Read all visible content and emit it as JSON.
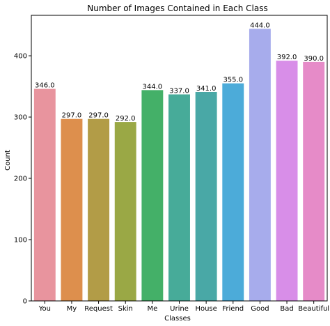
{
  "chart_data": {
    "type": "bar",
    "title": "Number of Images Contained in Each Class",
    "xlabel": "Classes",
    "ylabel": "Count",
    "categories": [
      "You",
      "My",
      "Request",
      "Skin",
      "Me",
      "Urine",
      "House",
      "Friend",
      "Good",
      "Bad",
      "Beautiful"
    ],
    "values": [
      346.0,
      297.0,
      297.0,
      292.0,
      344.0,
      337.0,
      341.0,
      355.0,
      444.0,
      392.0,
      390.0
    ],
    "data_labels": [
      "346.0",
      "297.0",
      "297.0",
      "292.0",
      "344.0",
      "337.0",
      "341.0",
      "355.0",
      "444.0",
      "392.0",
      "390.0"
    ],
    "colors": [
      "#e8949e",
      "#dd8f4d",
      "#b29c47",
      "#9aa845",
      "#44b068",
      "#47ab99",
      "#49a8a6",
      "#4cabd9",
      "#a7acec",
      "#d88ee8",
      "#e68bc8"
    ],
    "yticks": [
      0,
      100,
      200,
      300,
      400
    ],
    "ytick_labels": [
      "0",
      "100",
      "200",
      "300",
      "400"
    ],
    "ylim": [
      0,
      466
    ],
    "grid": false
  }
}
